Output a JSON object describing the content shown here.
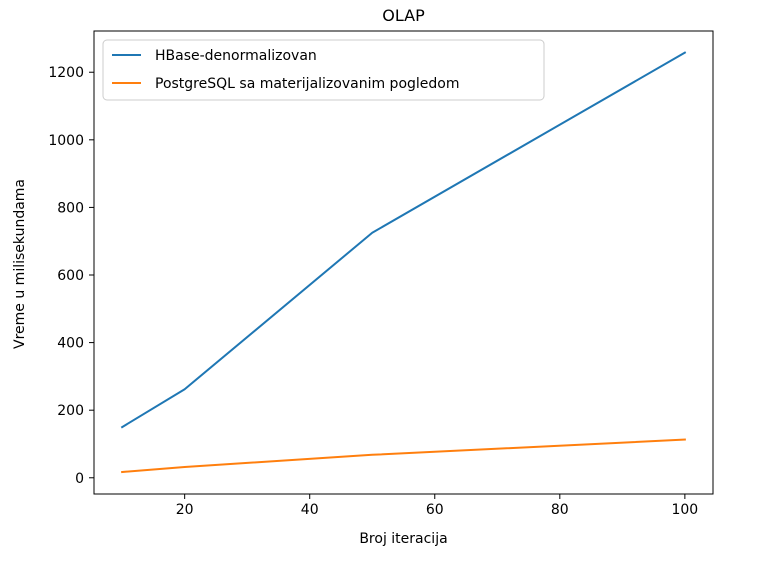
{
  "chart_data": {
    "type": "line",
    "title": "OLAP",
    "xlabel": "Broj iteracija",
    "ylabel": "Vreme u milisekundama",
    "xlim": [
      5.5,
      104.5
    ],
    "ylim": [
      -48,
      1322
    ],
    "xticks": [
      20,
      40,
      60,
      80,
      100
    ],
    "yticks": [
      0,
      200,
      400,
      600,
      800,
      1000,
      1200
    ],
    "grid": false,
    "legend": "upper-left",
    "x": [
      10,
      20,
      50,
      100
    ],
    "series": [
      {
        "name": "HBase-denormalizovan",
        "color": "#1f77b4",
        "values": [
          150,
          262,
          725,
          1258
        ]
      },
      {
        "name": "PostgreSQL sa materijalizovanim pogledom",
        "color": "#ff7f0e",
        "values": [
          17,
          32,
          68,
          113
        ]
      }
    ]
  }
}
